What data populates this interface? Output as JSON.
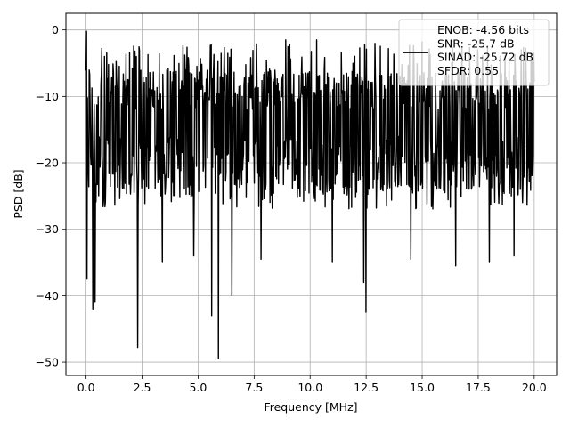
{
  "chart_data": {
    "type": "line",
    "title": "",
    "xlabel": "Frequency [MHz]",
    "ylabel": "PSD [dB]",
    "xlim": [
      -0.9,
      21.0
    ],
    "ylim": [
      -52.0,
      2.5
    ],
    "xticks": [
      0.0,
      2.5,
      5.0,
      7.5,
      10.0,
      12.5,
      15.0,
      17.5,
      20.0
    ],
    "xtick_labels": [
      "0.0",
      "2.5",
      "5.0",
      "7.5",
      "10.0",
      "12.5",
      "15.0",
      "17.5",
      "20.0"
    ],
    "yticks": [
      0,
      -10,
      -20,
      -30,
      -40,
      -50
    ],
    "ytick_labels": [
      "0",
      "−10",
      "−20",
      "−30",
      "−40",
      "−50"
    ],
    "grid": true,
    "legend_position": "top-right",
    "legend_entries": [
      "ENOB: -4.56 bits\nSNR: -25.7 dB\nSINAD: -25.72 dB\nSFDR: 0.55"
    ],
    "series": [
      {
        "color": "#000000",
        "x_start": 0.0,
        "x_end": 20.0,
        "num_points": 1000,
        "band_upper_db": -6.0,
        "band_lower_db": -24.0,
        "envelope_upper_db": -2.0,
        "envelope_lower_db": -27.0,
        "peaks": [
          {
            "x": 0.02,
            "y": -0.2
          },
          {
            "x": 0.05,
            "y": -4.0
          },
          {
            "x": 8.9,
            "y": -1.5
          },
          {
            "x": 10.3,
            "y": -1.5
          },
          {
            "x": 15.0,
            "y": -1.8
          },
          {
            "x": 16.5,
            "y": -3.5
          },
          {
            "x": 19.6,
            "y": -2.8
          }
        ],
        "dips": [
          {
            "x": 0.05,
            "y": -37.5
          },
          {
            "x": 0.3,
            "y": -42.0
          },
          {
            "x": 0.4,
            "y": -41.0
          },
          {
            "x": 2.3,
            "y": -47.8
          },
          {
            "x": 3.4,
            "y": -35.0
          },
          {
            "x": 4.8,
            "y": -34.0
          },
          {
            "x": 5.6,
            "y": -43.0
          },
          {
            "x": 5.9,
            "y": -49.5
          },
          {
            "x": 6.5,
            "y": -40.0
          },
          {
            "x": 7.8,
            "y": -34.5
          },
          {
            "x": 11.0,
            "y": -35.0
          },
          {
            "x": 12.4,
            "y": -38.0
          },
          {
            "x": 12.5,
            "y": -42.5
          },
          {
            "x": 14.5,
            "y": -34.5
          },
          {
            "x": 16.5,
            "y": -35.5
          },
          {
            "x": 18.0,
            "y": -35.0
          },
          {
            "x": 19.1,
            "y": -34.0
          }
        ]
      }
    ]
  }
}
